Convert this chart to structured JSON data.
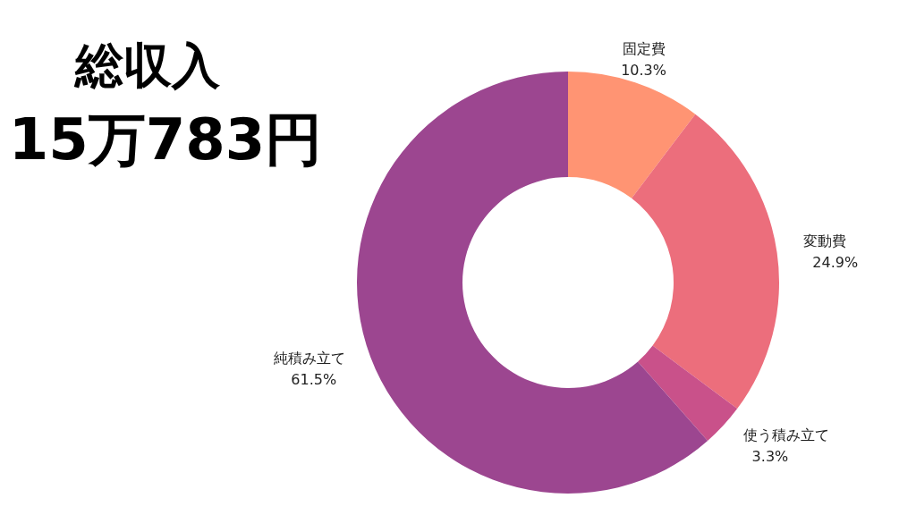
{
  "chart_data": {
    "type": "donut",
    "title": "総収入",
    "subtitle": "15万783円",
    "categories": [
      "固定費",
      "変動費",
      "使う積み立て",
      "純積み立て"
    ],
    "values": [
      10.3,
      24.9,
      3.3,
      61.5
    ],
    "colors": [
      "#ff9473",
      "#ec6e7c",
      "#c9518a",
      "#9c4690"
    ],
    "value_labels": [
      "10.3%",
      "24.9%",
      "3.3%",
      "61.5%"
    ]
  }
}
